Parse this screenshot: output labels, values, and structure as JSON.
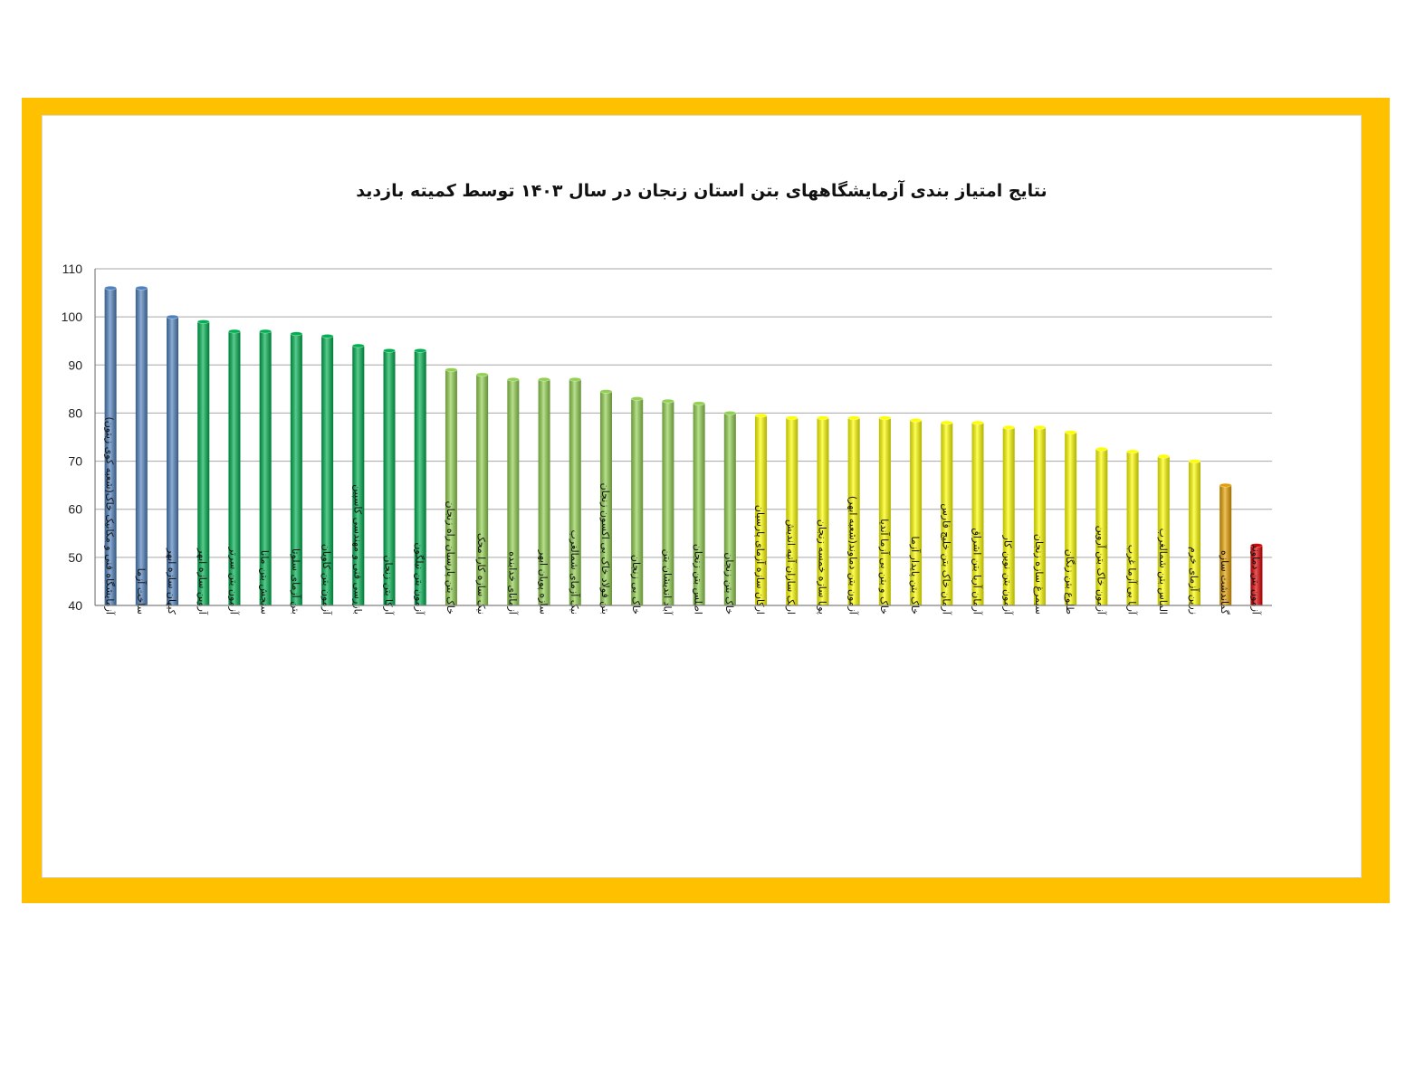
{
  "chart_data": {
    "type": "bar",
    "title": "نتایج امتیاز بندی آزمایشگاههای بتن استان زنجان در سال ۱۴۰۳ توسط کمیته بازدید",
    "xlabel": "",
    "ylabel": "",
    "ylim": [
      40,
      110
    ],
    "yticks": [
      40,
      50,
      60,
      70,
      80,
      90,
      100,
      110
    ],
    "grid": true,
    "legend": "none",
    "categories": [
      "آزمایشگاه فنی و مکانیک خاک(شعبه کوی زیتون)",
      "ساخت آزما",
      "کیهان سازه ابهر",
      "آروین سازه ابهر",
      "آزمون بتن سرتر",
      "سنجش بتن مانا",
      "بتن آزمای سلوتا",
      "آزمون بتن کاویان",
      "بازرسی فنی و مهندسی کاسپین",
      "آرکا بتن زنجان",
      "آزمون بتن نیلگون",
      "خاک بتن پارسیان راه زنجان",
      "نیک سازه کارا محک",
      "آزمانای خدابنده",
      "سازه پویان ابهر",
      "نیک آزمای شمالغرب",
      "بتن فولاد خاک بی اکسون زنجان",
      "خاک بی زنجان",
      "آباد اندیشان بتن",
      "اطلس بتن زنجان",
      "خاک بتن زنجان",
      "ارکان سازه آزمای پارسیان",
      "اریک سازان آتیه اندیش",
      "پویا سازه خمسه زنجان",
      "آزمون بتن دماوند(شعبه ابهر)",
      "خاک و بتن بی آزما آندیا",
      "خاک بتن پایدار آزما",
      "آرمان خاک بتن خلیج فارس",
      "آرمان آریا بتن اشراق",
      "آزمون بتن نوین کار",
      "سیمرغ سازه زنجان",
      "طلوع بتن زنگان",
      "آزمون خاک بتن آروین",
      "آریا بی آزما غرب",
      "الماس بتن شمالغرب",
      "زرین آزمای خرم",
      "گماندشت سازه",
      "آزمون بتن دماوند"
    ],
    "values": [
      106,
      106,
      100,
      99,
      97,
      97,
      96.5,
      96,
      94,
      93,
      93,
      89,
      88,
      87,
      87,
      87,
      84.5,
      83,
      82.5,
      82,
      80,
      79.5,
      79,
      79,
      79,
      79,
      78.5,
      78,
      78,
      77,
      77,
      76,
      72.5,
      72,
      71,
      70,
      65,
      52.5
    ],
    "bar_colors": [
      "#4F81BD",
      "#4F81BD",
      "#4F81BD",
      "#00B050",
      "#00B050",
      "#00B050",
      "#00B050",
      "#00B050",
      "#00B050",
      "#00B050",
      "#00B050",
      "#92D050",
      "#92D050",
      "#92D050",
      "#92D050",
      "#92D050",
      "#92D050",
      "#92D050",
      "#92D050",
      "#92D050",
      "#92D050",
      "#FFFF00",
      "#FFFF00",
      "#FFFF00",
      "#FFFF00",
      "#FFFF00",
      "#FFFF00",
      "#FFFF00",
      "#FFFF00",
      "#FFFF00",
      "#FFFF00",
      "#FFFF00",
      "#FFFF00",
      "#FFFF00",
      "#FFFF00",
      "#FFFF00",
      "#E5A000",
      "#E00000"
    ],
    "frame_color": "#FFC000"
  }
}
